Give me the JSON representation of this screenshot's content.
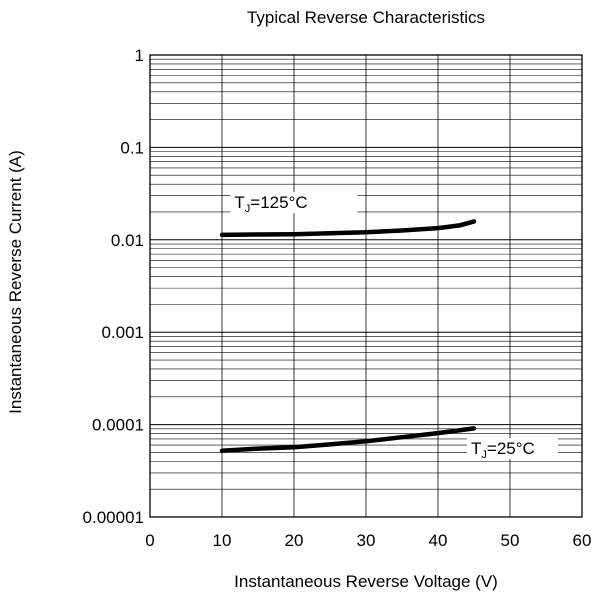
{
  "chart_data": {
    "type": "line",
    "title": "Typical Reverse Characteristics",
    "xlabel": "Instantaneous Reverse Voltage (V)",
    "ylabel": "Instantaneous Reverse Current (A)",
    "xlim": [
      0,
      60
    ],
    "ylim": [
      1e-05,
      1
    ],
    "yscale": "log",
    "grid": true,
    "xticks": [
      0,
      10,
      20,
      30,
      40,
      50,
      60
    ],
    "xtick_labels": [
      "0",
      "10",
      "20",
      "30",
      "40",
      "50",
      "60"
    ],
    "yticks": [
      1,
      0.1,
      0.01,
      0.001,
      0.0001,
      1e-05
    ],
    "ytick_labels": [
      "1",
      "0.1",
      "0.01",
      "0.001",
      "0.0001",
      "0.00001"
    ],
    "series": [
      {
        "label": "TJ=125°C",
        "x": [
          10,
          15,
          20,
          25,
          30,
          35,
          40,
          43,
          45
        ],
        "y": [
          0.0113,
          0.0114,
          0.0115,
          0.0118,
          0.0121,
          0.0126,
          0.0134,
          0.0143,
          0.0158
        ]
      },
      {
        "label": "TJ=25°C",
        "x": [
          10,
          15,
          20,
          25,
          30,
          35,
          40,
          45
        ],
        "y": [
          5.2e-05,
          5.5e-05,
          5.7e-05,
          6.1e-05,
          6.6e-05,
          7.3e-05,
          8.1e-05,
          9.1e-05
        ]
      }
    ],
    "annotations": [
      {
        "text": "T",
        "sub": "J",
        "rest": "=125°C"
      },
      {
        "text": "T",
        "sub": "J",
        "rest": "=25°C"
      }
    ]
  }
}
